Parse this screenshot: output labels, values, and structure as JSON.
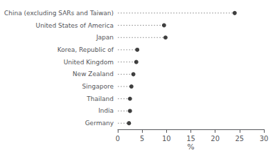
{
  "chart_data": {
    "type": "dot",
    "categories": [
      "China (excluding SARs and Taiwan)",
      "United States of America",
      "Japan",
      "Korea, Republic of",
      "United Kingdom",
      "New Zealand",
      "Singapore",
      "Thailand",
      "India",
      "Germany"
    ],
    "values": [
      24.0,
      9.5,
      9.8,
      4.0,
      3.8,
      3.2,
      2.8,
      2.5,
      2.5,
      2.3
    ],
    "color": "#111111",
    "marker": "circle",
    "line_style": "dashed",
    "xlabel": "%",
    "xlim": [
      0,
      30
    ],
    "xticks": [
      0,
      5,
      10,
      15,
      20,
      25,
      30
    ],
    "grid": false
  }
}
